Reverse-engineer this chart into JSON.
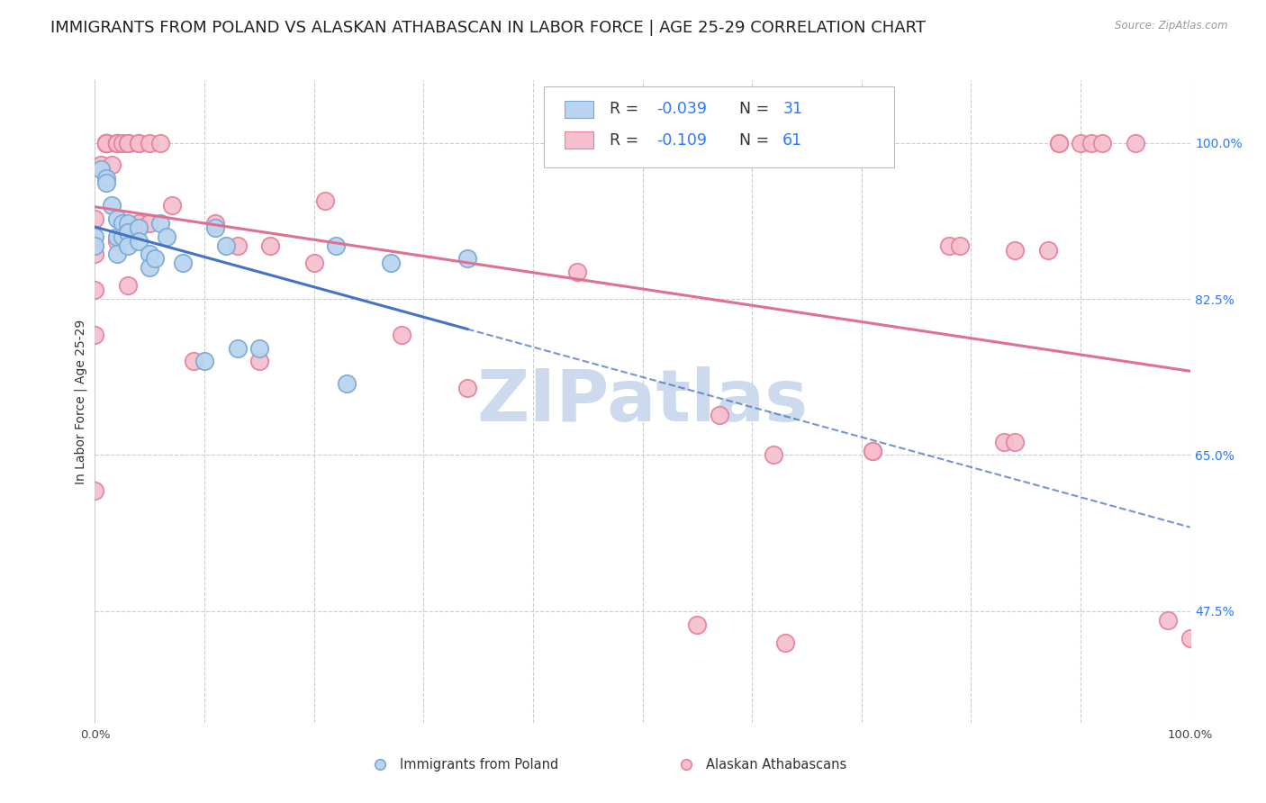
{
  "title": "IMMIGRANTS FROM POLAND VS ALASKAN ATHABASCAN IN LABOR FORCE | AGE 25-29 CORRELATION CHART",
  "source": "Source: ZipAtlas.com",
  "ylabel": "In Labor Force | Age 25-29",
  "xlim": [
    0.0,
    1.0
  ],
  "ylim": [
    0.35,
    1.07
  ],
  "x_ticks": [
    0.0,
    0.1,
    0.2,
    0.3,
    0.4,
    0.5,
    0.6,
    0.7,
    0.8,
    0.9,
    1.0
  ],
  "x_tick_labels": [
    "0.0%",
    "",
    "",
    "",
    "",
    "",
    "",
    "",
    "",
    "",
    "100.0%"
  ],
  "y_tick_labels_right": [
    "100.0%",
    "82.5%",
    "65.0%",
    "47.5%"
  ],
  "y_tick_positions_right": [
    1.0,
    0.825,
    0.65,
    0.475
  ],
  "grid_color": "#cccccc",
  "background_color": "#ffffff",
  "poland_color": "#b8d4f0",
  "poland_edge_color": "#7aaad4",
  "athabascan_color": "#f5bfce",
  "athabascan_edge_color": "#e8809a",
  "poland_R": -0.039,
  "poland_N": 31,
  "athabascan_R": -0.109,
  "athabascan_N": 61,
  "legend_label_poland": "Immigrants from Poland",
  "legend_label_athabascan": "Alaskan Athabascans",
  "poland_scatter_x": [
    0.0,
    0.0,
    0.005,
    0.01,
    0.01,
    0.015,
    0.02,
    0.02,
    0.02,
    0.025,
    0.025,
    0.03,
    0.03,
    0.03,
    0.04,
    0.04,
    0.05,
    0.05,
    0.055,
    0.06,
    0.065,
    0.08,
    0.1,
    0.11,
    0.12,
    0.13,
    0.15,
    0.22,
    0.23,
    0.27,
    0.34
  ],
  "poland_scatter_y": [
    0.895,
    0.885,
    0.97,
    0.96,
    0.955,
    0.93,
    0.915,
    0.895,
    0.875,
    0.91,
    0.895,
    0.91,
    0.9,
    0.885,
    0.905,
    0.89,
    0.875,
    0.86,
    0.87,
    0.91,
    0.895,
    0.865,
    0.755,
    0.905,
    0.885,
    0.77,
    0.77,
    0.885,
    0.73,
    0.865,
    0.87
  ],
  "athabascan_scatter_x": [
    0.0,
    0.0,
    0.0,
    0.0,
    0.0,
    0.005,
    0.01,
    0.01,
    0.01,
    0.01,
    0.01,
    0.01,
    0.01,
    0.015,
    0.02,
    0.02,
    0.02,
    0.02,
    0.02,
    0.025,
    0.03,
    0.03,
    0.03,
    0.03,
    0.04,
    0.04,
    0.04,
    0.05,
    0.05,
    0.06,
    0.07,
    0.09,
    0.11,
    0.13,
    0.15,
    0.16,
    0.2,
    0.21,
    0.28,
    0.34,
    0.44,
    0.55,
    0.57,
    0.62,
    0.63,
    0.71,
    0.71,
    0.78,
    0.79,
    0.83,
    0.84,
    0.84,
    0.87,
    0.88,
    0.88,
    0.9,
    0.91,
    0.92,
    0.95,
    0.98,
    1.0
  ],
  "athabascan_scatter_y": [
    0.915,
    0.875,
    0.835,
    0.785,
    0.61,
    0.975,
    1.0,
    1.0,
    1.0,
    1.0,
    1.0,
    1.0,
    1.0,
    0.975,
    1.0,
    1.0,
    1.0,
    1.0,
    0.89,
    1.0,
    1.0,
    1.0,
    1.0,
    0.84,
    1.0,
    1.0,
    0.91,
    1.0,
    0.91,
    1.0,
    0.93,
    0.755,
    0.91,
    0.885,
    0.755,
    0.885,
    0.865,
    0.935,
    0.785,
    0.725,
    0.855,
    0.46,
    0.695,
    0.65,
    0.44,
    0.655,
    0.655,
    0.885,
    0.885,
    0.665,
    0.665,
    0.88,
    0.88,
    1.0,
    1.0,
    1.0,
    1.0,
    1.0,
    1.0,
    0.465,
    0.445
  ],
  "poland_line_color": "#4472c4",
  "athabascan_line_color": "#e07090",
  "R_N_color": "#2979ff",
  "watermark_text": "ZIPatlas",
  "watermark_color": "#cddaed",
  "watermark_fontsize": 58,
  "title_fontsize": 13,
  "axis_label_fontsize": 10,
  "tick_fontsize": 9.5,
  "legend_fontsize": 12.5,
  "marker_size": 14
}
